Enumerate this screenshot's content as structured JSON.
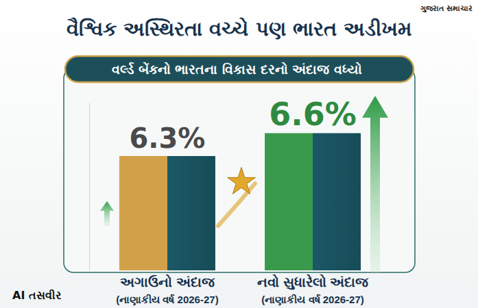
{
  "chart_data": {
    "type": "bar",
    "title": "વૈશ્વિક અસ્થિરતા વચ્ચે પણ ભારત અડીખમ",
    "subtitle": "વર્લ્ડ બેંકનો ભારતના વિકાસ દરનો અંદાજ વધ્યો",
    "categories": [
      "અગાઉનો અંદાજ\n(નાણાકીય વર્ષ 2026-27)",
      "નવો સુધારેલો અંદાજ\n(નાણાકીય વર્ષ 2026-27)"
    ],
    "values": [
      6.3,
      6.6
    ],
    "value_labels": [
      "6.3%",
      "6.6%"
    ],
    "colors": [
      "#d3a04a",
      "#3a9a4c"
    ],
    "ylim": [
      4.8,
      7.0
    ],
    "yticks": [],
    "data_labels": true,
    "tick_labels": "x",
    "annotations": [
      "AI તસવીર",
      "ગુજરાત સમાચાર"
    ]
  }
}
